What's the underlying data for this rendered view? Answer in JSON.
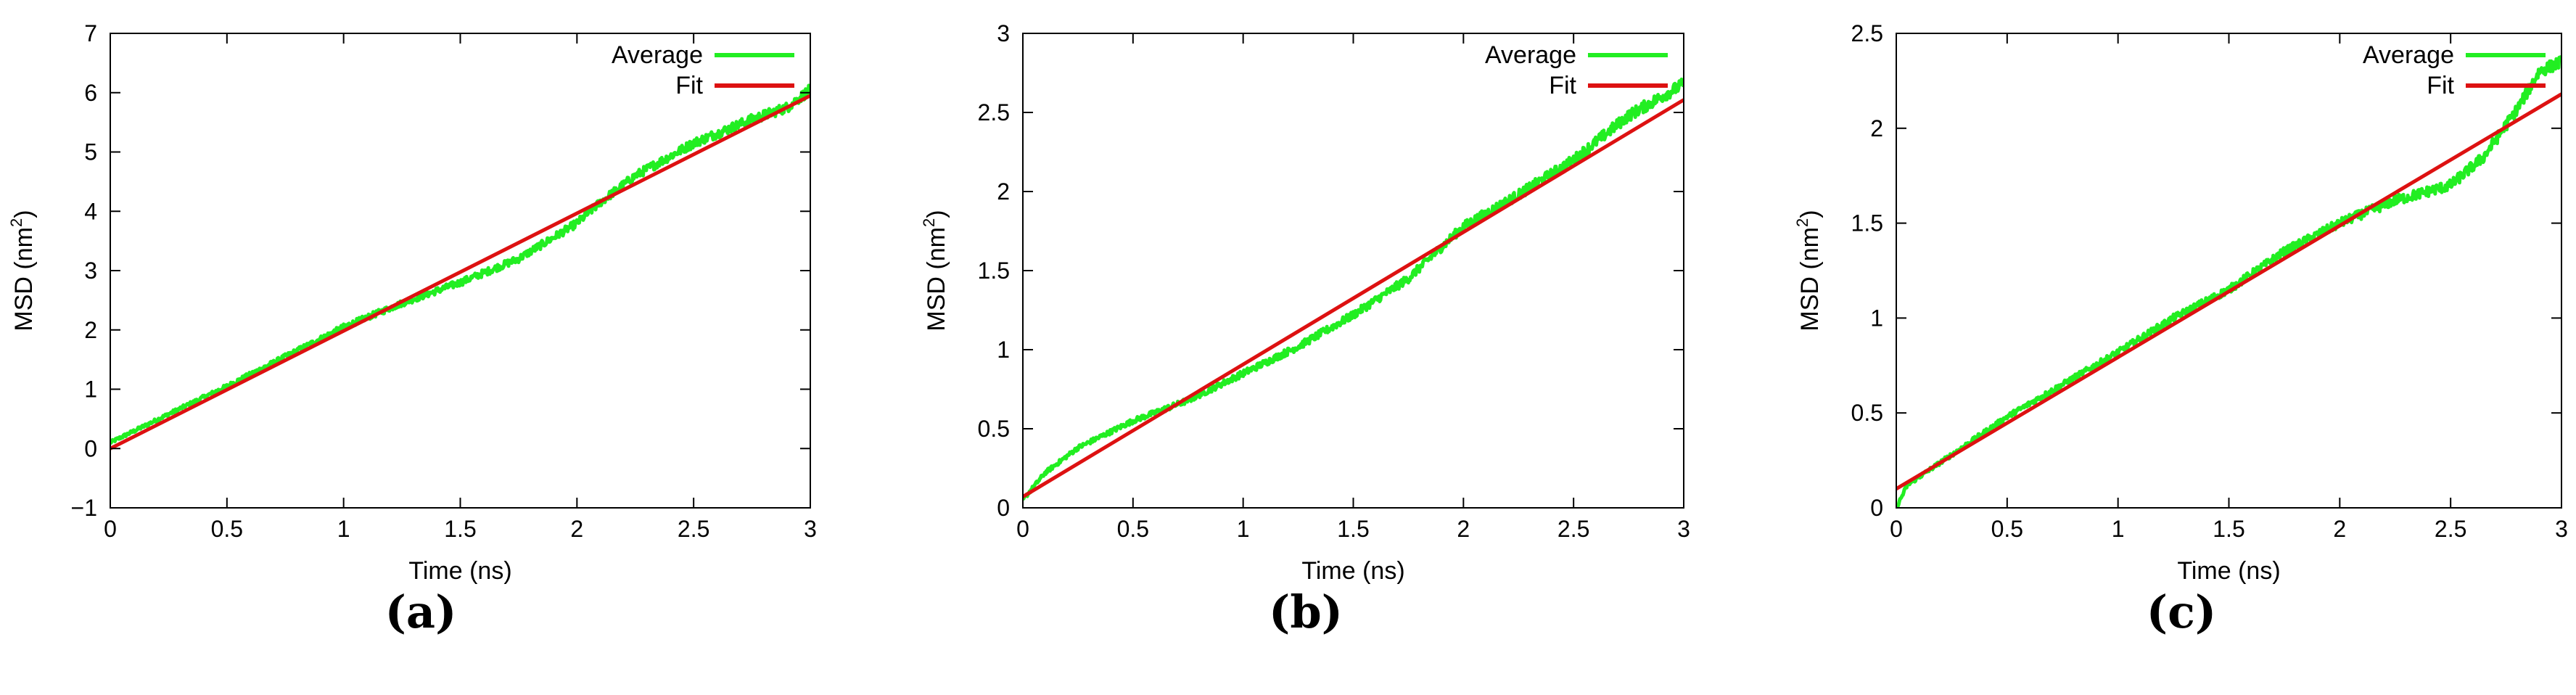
{
  "figure": {
    "panel_labels": [
      "(a)",
      "(b)",
      "(c)"
    ]
  },
  "colors": {
    "average": "#22ee22",
    "fit": "#dd1111",
    "axis": "#000000"
  },
  "chart_data": [
    {
      "type": "line",
      "panel": "(a)",
      "title": "",
      "xlabel": "Time (ns)",
      "ylabel_main": "MSD (nm",
      "ylabel_sup": "2",
      "ylabel_close": ")",
      "xlim": [
        0,
        3
      ],
      "ylim": [
        -1,
        7
      ],
      "xticks": [
        0,
        0.5,
        1,
        1.5,
        2,
        2.5,
        3
      ],
      "xtick_labels": [
        "0",
        "0.5",
        "1",
        "1.5",
        "2",
        "2.5",
        "3"
      ],
      "yticks": [
        -1,
        0,
        1,
        2,
        3,
        4,
        5,
        6,
        7
      ],
      "ytick_labels": [
        "−1",
        "0",
        "1",
        "2",
        "3",
        "4",
        "5",
        "6",
        "7"
      ],
      "legend": [
        "Average",
        "Fit"
      ],
      "legend_position": "top-right",
      "series": [
        {
          "name": "Average",
          "noise": 0.07,
          "x": [
            0,
            0.25,
            0.5,
            0.75,
            1.0,
            1.25,
            1.5,
            1.75,
            2.0,
            2.1,
            2.25,
            2.5,
            2.75,
            2.9,
            3.0
          ],
          "y": [
            0.1,
            0.58,
            1.05,
            1.55,
            2.05,
            2.45,
            2.8,
            3.2,
            3.8,
            4.15,
            4.6,
            5.15,
            5.55,
            5.75,
            6.05
          ]
        },
        {
          "name": "Fit",
          "noise": 0,
          "x": [
            0,
            3
          ],
          "y": [
            0.0,
            5.95
          ]
        }
      ]
    },
    {
      "type": "line",
      "panel": "(b)",
      "title": "",
      "xlabel": "Time (ns)",
      "ylabel_main": "MSD (nm",
      "ylabel_sup": "2",
      "ylabel_close": ")",
      "xlim": [
        0,
        3
      ],
      "ylim": [
        0,
        3
      ],
      "xticks": [
        0,
        0.5,
        1,
        1.5,
        2,
        2.5,
        3
      ],
      "xtick_labels": [
        "0",
        "0.5",
        "1",
        "1.5",
        "2",
        "2.5",
        "3"
      ],
      "yticks": [
        0,
        0.5,
        1,
        1.5,
        2,
        2.5,
        3
      ],
      "ytick_labels": [
        "0",
        "0.5",
        "1",
        "1.5",
        "2",
        "2.5",
        "3"
      ],
      "legend": [
        "Average",
        "Fit"
      ],
      "legend_position": "top-right",
      "series": [
        {
          "name": "Average",
          "noise": 0.03,
          "x": [
            0,
            0.1,
            0.25,
            0.5,
            0.75,
            1.0,
            1.25,
            1.5,
            1.75,
            2.0,
            2.25,
            2.5,
            2.75,
            2.9,
            3.0
          ],
          "y": [
            0.05,
            0.22,
            0.38,
            0.55,
            0.68,
            0.85,
            1.02,
            1.22,
            1.45,
            1.78,
            1.98,
            2.2,
            2.48,
            2.6,
            2.68
          ]
        },
        {
          "name": "Fit",
          "noise": 0,
          "x": [
            0,
            3
          ],
          "y": [
            0.07,
            2.58
          ]
        }
      ]
    },
    {
      "type": "line",
      "panel": "(c)",
      "title": "",
      "xlabel": "Time (ns)",
      "ylabel_main": "MSD (nm",
      "ylabel_sup": "2",
      "ylabel_close": ")",
      "xlim": [
        0,
        3
      ],
      "ylim": [
        0,
        2.5
      ],
      "xticks": [
        0,
        0.5,
        1,
        1.5,
        2,
        2.5,
        3
      ],
      "xtick_labels": [
        "0",
        "0.5",
        "1",
        "1.5",
        "2",
        "2.5",
        "3"
      ],
      "yticks": [
        0,
        0.5,
        1,
        1.5,
        2,
        2.5
      ],
      "ytick_labels": [
        "0",
        "0.5",
        "1",
        "1.5",
        "2",
        "2.5"
      ],
      "legend": [
        "Average",
        "Fit"
      ],
      "legend_position": "top-right",
      "series": [
        {
          "name": "Average",
          "noise": 0.025,
          "x": [
            0,
            0.05,
            0.25,
            0.5,
            0.75,
            1.0,
            1.25,
            1.5,
            1.75,
            2.0,
            2.25,
            2.5,
            2.65,
            2.8,
            2.9,
            3.0
          ],
          "y": [
            0.0,
            0.12,
            0.28,
            0.48,
            0.65,
            0.82,
            1.0,
            1.15,
            1.35,
            1.5,
            1.62,
            1.7,
            1.85,
            2.1,
            2.3,
            2.35
          ]
        },
        {
          "name": "Fit",
          "noise": 0,
          "x": [
            0,
            3
          ],
          "y": [
            0.1,
            2.18
          ]
        }
      ]
    }
  ]
}
